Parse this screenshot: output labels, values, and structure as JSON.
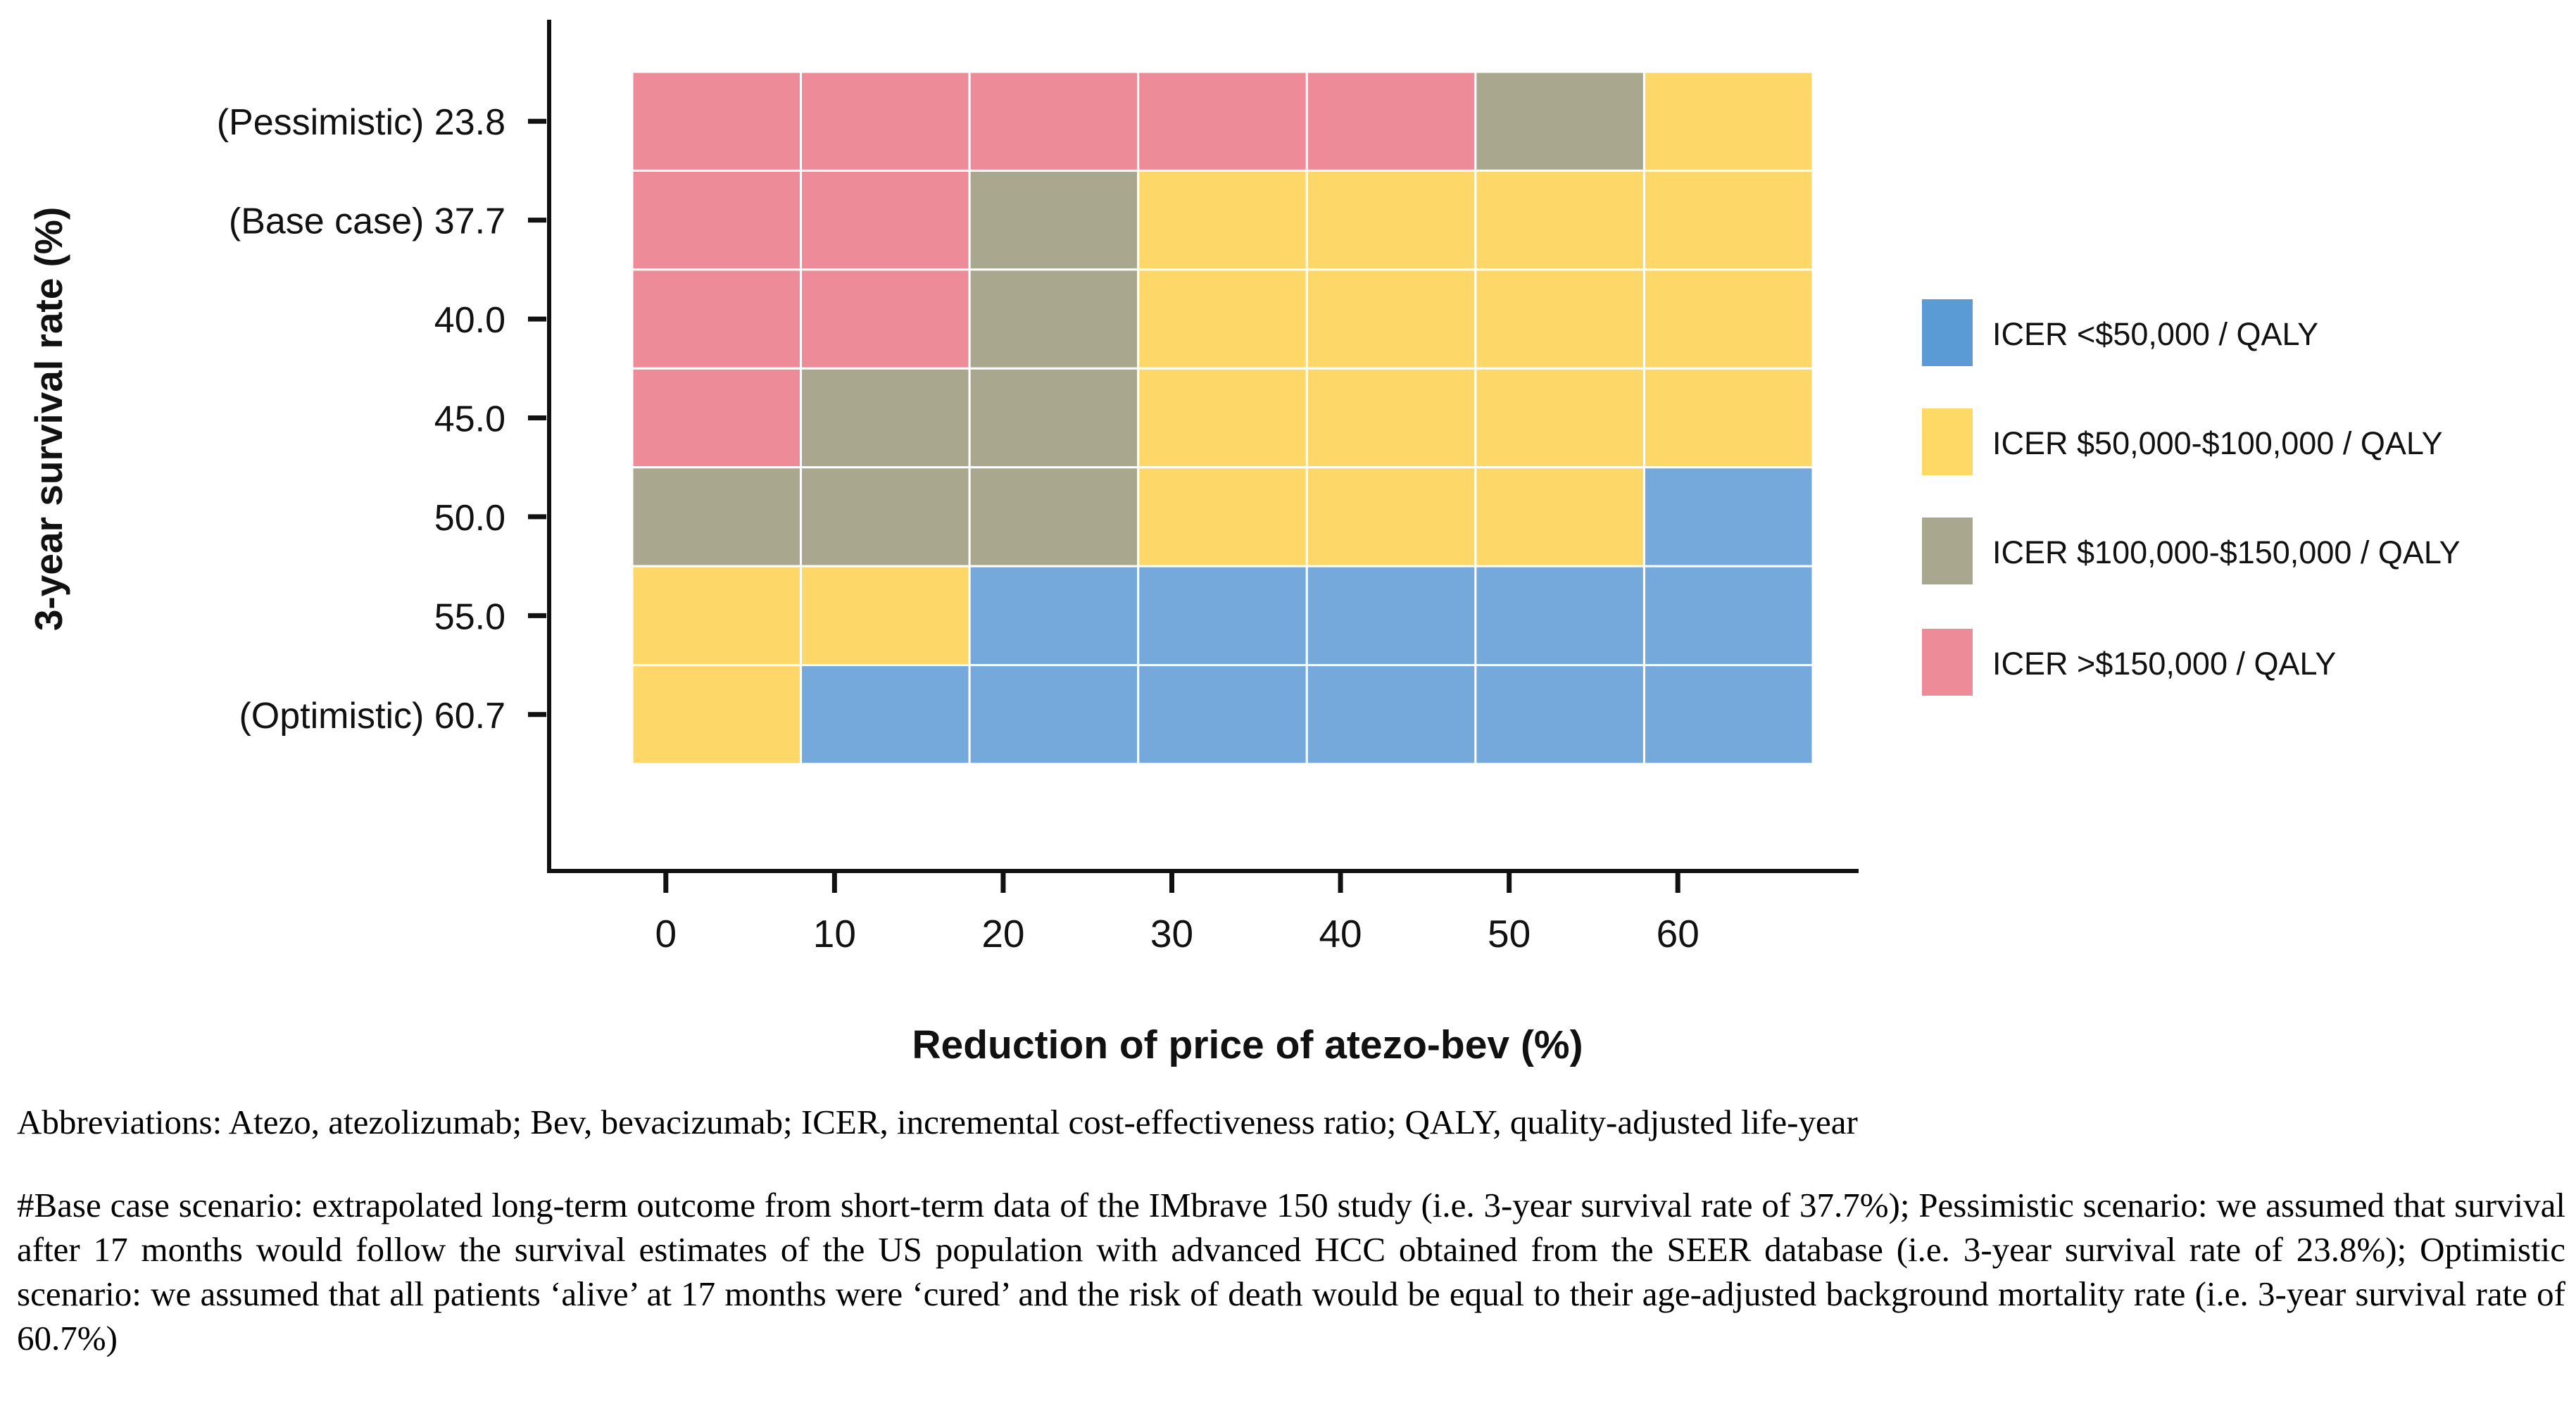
{
  "chart_data": {
    "type": "heatmap",
    "title": "",
    "xlabel": "Reduction of price of atezo-bev (%)",
    "ylabel": "3-year survival rate (%)",
    "x_categories": [
      "0",
      "10",
      "20",
      "30",
      "40",
      "50",
      "60"
    ],
    "y_categories": [
      "(Pessimistic) 23.8",
      "(Base case) 37.7",
      "40.0",
      "45.0",
      "50.0",
      "55.0",
      "(Optimistic) 60.7"
    ],
    "legend_placement": "right",
    "legend": [
      {
        "key": "lt50k",
        "label": "ICER <$50,000 / QALY",
        "color": "#5b9bd5"
      },
      {
        "key": "50k-100k",
        "label": "ICER $50,000-$100,000 / QALY",
        "color": "#ffd966"
      },
      {
        "key": "100k-150k",
        "label": "ICER $100,000-$150,000 / QALY",
        "color": "#a9a88e"
      },
      {
        "key": "gt150k",
        "label": "ICER >$150,000 / QALY",
        "color": "#ed8c98"
      }
    ],
    "cell_colors": {
      "lt50k": "#75a9db",
      "50k-100k": "#fdd768",
      "100k-150k": "#a9a88e",
      "gt150k": "#ed8c98"
    },
    "cells": [
      [
        "gt150k",
        "gt150k",
        "gt150k",
        "gt150k",
        "gt150k",
        "100k-150k",
        "50k-100k"
      ],
      [
        "gt150k",
        "gt150k",
        "100k-150k",
        "50k-100k",
        "50k-100k",
        "50k-100k",
        "50k-100k"
      ],
      [
        "gt150k",
        "gt150k",
        "100k-150k",
        "50k-100k",
        "50k-100k",
        "50k-100k",
        "50k-100k"
      ],
      [
        "gt150k",
        "100k-150k",
        "100k-150k",
        "50k-100k",
        "50k-100k",
        "50k-100k",
        "50k-100k"
      ],
      [
        "100k-150k",
        "100k-150k",
        "100k-150k",
        "50k-100k",
        "50k-100k",
        "50k-100k",
        "lt50k"
      ],
      [
        "50k-100k",
        "50k-100k",
        "lt50k",
        "lt50k",
        "lt50k",
        "lt50k",
        "lt50k"
      ],
      [
        "50k-100k",
        "lt50k",
        "lt50k",
        "lt50k",
        "lt50k",
        "lt50k",
        "lt50k"
      ]
    ]
  },
  "footnotes": {
    "abbreviations": "Abbreviations: Atezo, atezolizumab; Bev, bevacizumab; ICER, incremental cost-effectiveness ratio; QALY, quality-adjusted life-year",
    "scenarios": "#Base case scenario: extrapolated long-term outcome from short-term data of the IMbrave 150 study (i.e. 3-year survival rate of 37.7%); Pessimistic scenario: we assumed that survival after 17 months would follow the survival estimates of the US population with advanced HCC obtained from the SEER database (i.e. 3-year survival rate of 23.8%); Optimistic scenario: we assumed that all patients ‘alive’ at 17 months were ‘cured’ and the risk of death would be equal to their age-adjusted background mortality rate (i.e. 3-year survival rate of 60.7%)"
  }
}
